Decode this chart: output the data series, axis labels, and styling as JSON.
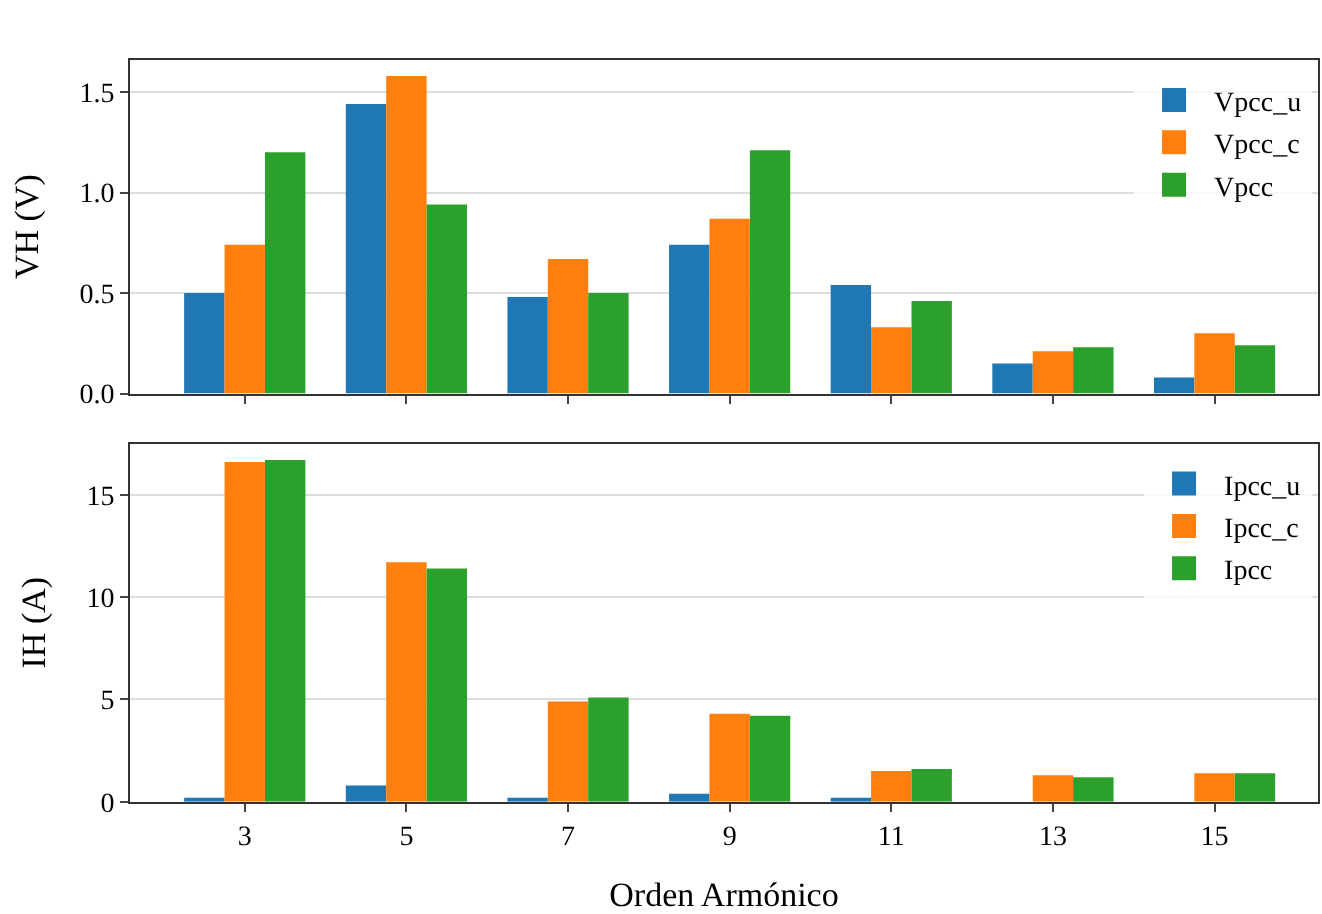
{
  "chart_data": [
    {
      "type": "bar",
      "ylabel": "VH (V)",
      "categories": [
        "3",
        "5",
        "7",
        "9",
        "11",
        "13",
        "15"
      ],
      "ylim": [
        0,
        1.66
      ],
      "yticks": [
        {
          "value": 0,
          "label": "0.0"
        },
        0.5,
        {
          "value": 1,
          "label": "1.0"
        },
        1.5
      ],
      "grid": "y",
      "legend": "top right",
      "tick_labels": "y",
      "series": [
        {
          "name": "Vpcc_u",
          "color": "#1f77b4",
          "values": [
            0.5,
            1.44,
            0.48,
            0.74,
            0.54,
            0.15,
            0.08
          ]
        },
        {
          "name": "Vpcc_c",
          "color": "#ff7f0e",
          "values": [
            0.74,
            1.58,
            0.67,
            0.87,
            0.33,
            0.21,
            0.3
          ]
        },
        {
          "name": "Vpcc",
          "color": "#2ca02c",
          "values": [
            1.2,
            0.94,
            0.5,
            1.21,
            0.46,
            0.23,
            0.24
          ]
        }
      ]
    },
    {
      "type": "bar",
      "xlabel": "Orden Armónico",
      "ylabel": "IH (A)",
      "categories": [
        "3",
        "5",
        "7",
        "9",
        "11",
        "13",
        "15"
      ],
      "ylim": [
        0,
        17.5
      ],
      "yticks": [
        0,
        5,
        10,
        15
      ],
      "grid": "y",
      "legend": "top right",
      "series": [
        {
          "name": "Ipcc_u",
          "color": "#1f77b4",
          "values": [
            0.2,
            0.8,
            0.2,
            0.4,
            0.2,
            0,
            0
          ]
        },
        {
          "name": "Ipcc_c",
          "color": "#ff7f0e",
          "values": [
            16.6,
            11.7,
            4.9,
            4.3,
            1.5,
            1.3,
            1.4
          ]
        },
        {
          "name": "Ipcc",
          "color": "#2ca02c",
          "values": [
            16.7,
            11.4,
            5.1,
            4.2,
            1.6,
            1.2,
            1.4
          ]
        }
      ]
    }
  ]
}
